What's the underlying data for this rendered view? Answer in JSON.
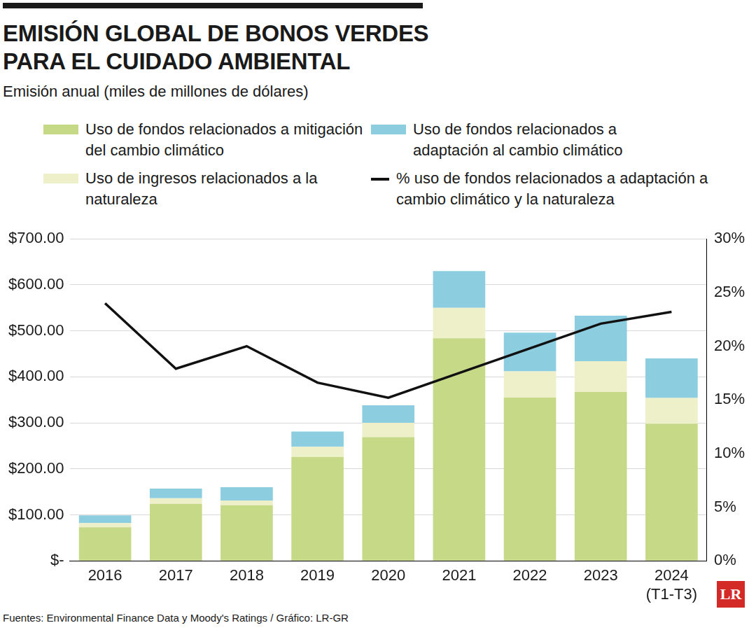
{
  "chart_data": {
    "type": "bar",
    "title": "EMISIÓN GLOBAL DE BONOS VERDES PARA EL CUIDADO AMBIENTAL",
    "subtitle": "Emisión anual (miles de millones de dólares)",
    "source": "Fuentes: Environmental Finance Data y Moody's Ratings / Gráfico: LR-GR",
    "logo": "LR",
    "categories": [
      "2016",
      "2017",
      "2018",
      "2019",
      "2020",
      "2021",
      "2022",
      "2023",
      [
        "2024",
        "(T1-T3)"
      ]
    ],
    "stacked": true,
    "grid": true,
    "legend": "top",
    "data_labels": false,
    "series": [
      {
        "name": "Uso de fondos relacionados a mitigación del cambio climático",
        "type": "bar",
        "color": "#c5d987",
        "values": [
          73,
          124,
          121,
          226,
          269,
          484,
          355,
          367,
          298
        ]
      },
      {
        "name": "Uso de ingresos relacionados a la naturaleza",
        "type": "bar",
        "color": "#eef0c9",
        "values": [
          9,
          12,
          10,
          22,
          31,
          66,
          57,
          67,
          56
        ]
      },
      {
        "name": "Uso de fondos relacionados a adaptación al cambio climático",
        "type": "bar",
        "color": "#8ccde0",
        "values": [
          17,
          21,
          29,
          33,
          38,
          80,
          84,
          99,
          86
        ]
      },
      {
        "name": "% uso de fondos relacionados a adaptación a cambio climático y la naturaleza",
        "type": "line",
        "axis": "y2",
        "color": "#111111",
        "marker": "none",
        "line_style": "solid",
        "values": [
          24.0,
          17.9,
          20.0,
          16.6,
          15.2,
          17.5,
          19.8,
          22.1,
          23.2
        ]
      }
    ],
    "ylim": [
      0,
      700
    ],
    "yticks": [
      {
        "value": 0,
        "label": "$-"
      },
      {
        "value": 100,
        "label": "$100.00"
      },
      {
        "value": 200,
        "label": "$200.00"
      },
      {
        "value": 300,
        "label": "$300.00"
      },
      {
        "value": 400,
        "label": "$400.00"
      },
      {
        "value": 500,
        "label": "$500.00"
      },
      {
        "value": 600,
        "label": "$600.00"
      },
      {
        "value": 700,
        "label": "$700.00"
      }
    ],
    "y2lim": [
      0,
      30
    ],
    "y2ticks": [
      {
        "value": 0,
        "label": "0%"
      },
      {
        "value": 5,
        "label": "5%"
      },
      {
        "value": 10,
        "label": "10%"
      },
      {
        "value": 15,
        "label": "15%"
      },
      {
        "value": 20,
        "label": "20%"
      },
      {
        "value": 25,
        "label": "25%"
      },
      {
        "value": 30,
        "label": "30%"
      }
    ]
  }
}
